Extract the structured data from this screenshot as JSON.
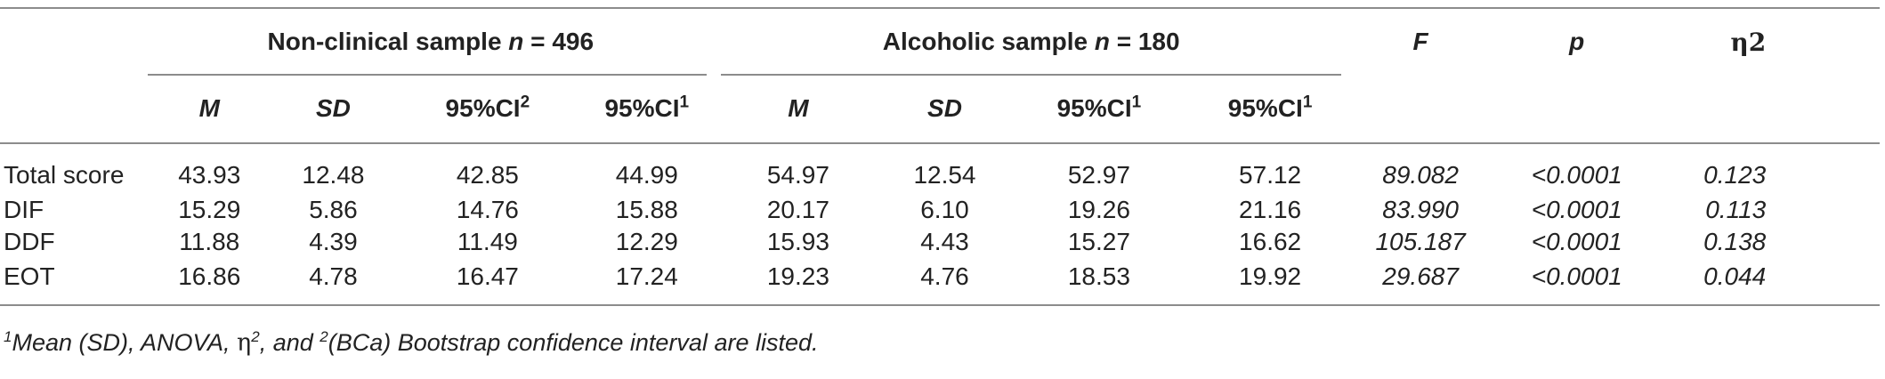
{
  "table": {
    "groups": {
      "nonclinical": "Non-clinical sample",
      "nonclinical_n": "n",
      "nonclinical_eq": " = 496",
      "alcoholic": "Alcoholic sample",
      "alcoholic_n": "n",
      "alcoholic_eq": " = 180"
    },
    "stats_headers": {
      "F": "F",
      "p": "p",
      "eta": "η2"
    },
    "sub_headers": {
      "M": "M",
      "SD": "SD",
      "ci": "95%CI",
      "sup_2": "2",
      "sup_1": "1"
    },
    "rows": [
      {
        "label": "Total score",
        "nc_m": "43.93",
        "nc_sd": "12.48",
        "nc_ci_lo": "42.85",
        "nc_ci_hi": "44.99",
        "al_m": "54.97",
        "al_sd": "12.54",
        "al_ci_lo": "52.97",
        "al_ci_hi": "57.12",
        "F": "89.082",
        "p": "<0.0001",
        "eta": "0.123"
      },
      {
        "label": "DIF",
        "nc_m": "15.29",
        "nc_sd": "5.86",
        "nc_ci_lo": "14.76",
        "nc_ci_hi": "15.88",
        "al_m": "20.17",
        "al_sd": "6.10",
        "al_ci_lo": "19.26",
        "al_ci_hi": "21.16",
        "F": "83.990",
        "p": "<0.0001",
        "eta": "0.113"
      },
      {
        "label": "DDF",
        "nc_m": "11.88",
        "nc_sd": "4.39",
        "nc_ci_lo": "11.49",
        "nc_ci_hi": "12.29",
        "al_m": "15.93",
        "al_sd": "4.43",
        "al_ci_lo": "15.27",
        "al_ci_hi": "16.62",
        "F": "105.187",
        "p": "<0.0001",
        "eta": "0.138"
      },
      {
        "label": "EOT",
        "nc_m": "16.86",
        "nc_sd": "4.78",
        "nc_ci_lo": "16.47",
        "nc_ci_hi": "17.24",
        "al_m": "19.23",
        "al_sd": "4.76",
        "al_ci_lo": "18.53",
        "al_ci_hi": "19.92",
        "F": "29.687",
        "p": "<0.0001",
        "eta": "0.044"
      }
    ]
  },
  "footnote": {
    "sup1": "1",
    "text1": "Mean (SD), ANOVA, ",
    "eta": "η",
    "eta_sup": "2",
    "text2": ", and ",
    "sup2": "2",
    "text3": "(BCa) Bootstrap confidence interval are listed."
  }
}
